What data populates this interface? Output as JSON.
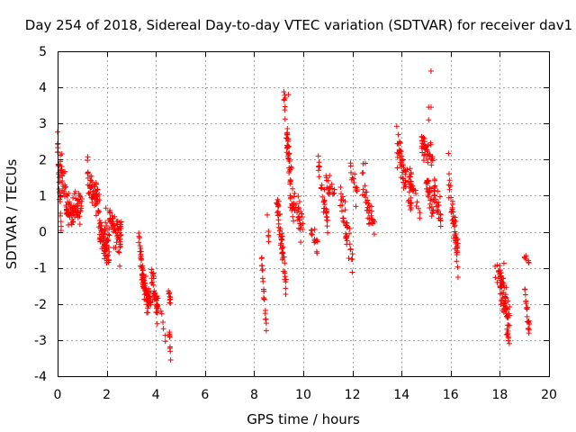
{
  "chart_data": {
    "type": "scatter",
    "title": "Day 254 of 2018, Sidereal Day-to-day VTEC variation (SDTVAR) for receiver dav1",
    "xlabel": "GPS time / hours",
    "ylabel": "SDTVAR / TECUs",
    "xlim": [
      0,
      20
    ],
    "ylim": [
      -4,
      5
    ],
    "xticks": [
      0,
      2,
      4,
      6,
      8,
      10,
      12,
      14,
      16,
      18,
      20
    ],
    "yticks": [
      -4,
      -3,
      -2,
      -1,
      0,
      1,
      2,
      3,
      4,
      5
    ],
    "grid": true,
    "marker": "+",
    "marker_color": "#ff0000",
    "series": [
      {
        "name": "dav1",
        "clusters": [
          {
            "t0": 0.0,
            "t1": 0.15,
            "y0": 2.5,
            "y1": 0.2,
            "spread": 0.5,
            "n": 30
          },
          {
            "t0": 0.1,
            "t1": 0.5,
            "y0": 1.8,
            "y1": 0.3,
            "spread": 0.6,
            "n": 40
          },
          {
            "t0": 0.4,
            "t1": 1.0,
            "y0": 0.5,
            "y1": 0.6,
            "spread": 0.6,
            "n": 60
          },
          {
            "t0": 1.2,
            "t1": 1.7,
            "y0": 1.6,
            "y1": 0.6,
            "spread": 0.5,
            "n": 60
          },
          {
            "t0": 1.7,
            "t1": 2.1,
            "y0": 0.1,
            "y1": -0.5,
            "spread": 0.6,
            "n": 70
          },
          {
            "t0": 2.1,
            "t1": 2.6,
            "y0": 0.4,
            "y1": -0.2,
            "spread": 0.6,
            "n": 60
          },
          {
            "t0": 3.3,
            "t1": 3.5,
            "y0": -0.3,
            "y1": -1.3,
            "spread": 0.4,
            "n": 30
          },
          {
            "t0": 3.45,
            "t1": 3.8,
            "y0": -1.4,
            "y1": -2.0,
            "spread": 0.4,
            "n": 50
          },
          {
            "t0": 3.8,
            "t1": 4.1,
            "y0": -1.2,
            "y1": -2.2,
            "spread": 0.4,
            "n": 40
          },
          {
            "t0": 4.2,
            "t1": 4.4,
            "y0": -2.2,
            "y1": -3.0,
            "spread": 0.2,
            "n": 6
          },
          {
            "t0": 4.5,
            "t1": 4.6,
            "y0": -1.7,
            "y1": -2.0,
            "spread": 0.2,
            "n": 10
          },
          {
            "t0": 4.55,
            "t1": 4.6,
            "y0": -2.7,
            "y1": -3.55,
            "spread": 0.15,
            "n": 8
          },
          {
            "t0": 8.3,
            "t1": 8.5,
            "y0": -0.7,
            "y1": -2.8,
            "spread": 0.3,
            "n": 20
          },
          {
            "t0": 8.5,
            "t1": 8.6,
            "y0": 0.8,
            "y1": -0.2,
            "spread": 0.2,
            "n": 5
          },
          {
            "t0": 8.9,
            "t1": 9.3,
            "y0": 1.0,
            "y1": -1.5,
            "spread": 0.6,
            "n": 50
          },
          {
            "t0": 9.2,
            "t1": 9.6,
            "y0": 3.8,
            "y1": 0.3,
            "spread": 0.6,
            "n": 60
          },
          {
            "t0": 9.6,
            "t1": 10.0,
            "y0": 1.0,
            "y1": 0.0,
            "spread": 0.5,
            "n": 30
          },
          {
            "t0": 10.3,
            "t1": 10.6,
            "y0": 0.0,
            "y1": -0.4,
            "spread": 0.3,
            "n": 15
          },
          {
            "t0": 10.6,
            "t1": 11.0,
            "y0": 1.8,
            "y1": 0.1,
            "spread": 0.5,
            "n": 30
          },
          {
            "t0": 10.9,
            "t1": 11.3,
            "y0": 1.4,
            "y1": 1.0,
            "spread": 0.3,
            "n": 20
          },
          {
            "t0": 11.5,
            "t1": 12.0,
            "y0": 1.0,
            "y1": -0.8,
            "spread": 0.6,
            "n": 40
          },
          {
            "t0": 11.9,
            "t1": 12.2,
            "y0": 1.9,
            "y1": 1.0,
            "spread": 0.4,
            "n": 15
          },
          {
            "t0": 12.4,
            "t1": 12.9,
            "y0": 1.4,
            "y1": 0.0,
            "spread": 0.5,
            "n": 35
          },
          {
            "t0": 13.8,
            "t1": 14.4,
            "y0": 2.5,
            "y1": 0.8,
            "spread": 0.6,
            "n": 60
          },
          {
            "t0": 14.3,
            "t1": 14.8,
            "y0": 1.6,
            "y1": 0.4,
            "spread": 0.4,
            "n": 25
          },
          {
            "t0": 14.8,
            "t1": 15.3,
            "y0": 2.5,
            "y1": 1.9,
            "spread": 0.3,
            "n": 40
          },
          {
            "t0": 15.0,
            "t1": 15.3,
            "y0": 1.3,
            "y1": 0.5,
            "spread": 0.5,
            "n": 30
          },
          {
            "t0": 15.3,
            "t1": 15.6,
            "y0": 1.2,
            "y1": 0.4,
            "spread": 0.5,
            "n": 30
          },
          {
            "t0": 15.9,
            "t1": 16.3,
            "y0": 1.6,
            "y1": -0.8,
            "spread": 0.6,
            "n": 50
          },
          {
            "t0": 17.8,
            "t1": 18.1,
            "y0": -1.0,
            "y1": -1.4,
            "spread": 0.3,
            "n": 20
          },
          {
            "t0": 18.0,
            "t1": 18.4,
            "y0": -1.5,
            "y1": -2.5,
            "spread": 0.6,
            "n": 60
          },
          {
            "t0": 18.3,
            "t1": 18.4,
            "y0": -2.8,
            "y1": -3.1,
            "spread": 0.2,
            "n": 8
          },
          {
            "t0": 19.0,
            "t1": 19.2,
            "y0": -0.7,
            "y1": -0.85,
            "spread": 0.1,
            "n": 8
          },
          {
            "t0": 19.0,
            "t1": 19.2,
            "y0": -1.5,
            "y1": -2.9,
            "spread": 0.4,
            "n": 20
          }
        ],
        "isolated_points": [
          {
            "x": 15.2,
            "y": 4.45
          },
          {
            "x": 15.1,
            "y": 3.45
          },
          {
            "x": 15.2,
            "y": 3.45
          },
          {
            "x": 15.1,
            "y": 3.1
          },
          {
            "x": 9.4,
            "y": 3.8
          },
          {
            "x": 4.6,
            "y": -3.55
          }
        ]
      }
    ]
  }
}
